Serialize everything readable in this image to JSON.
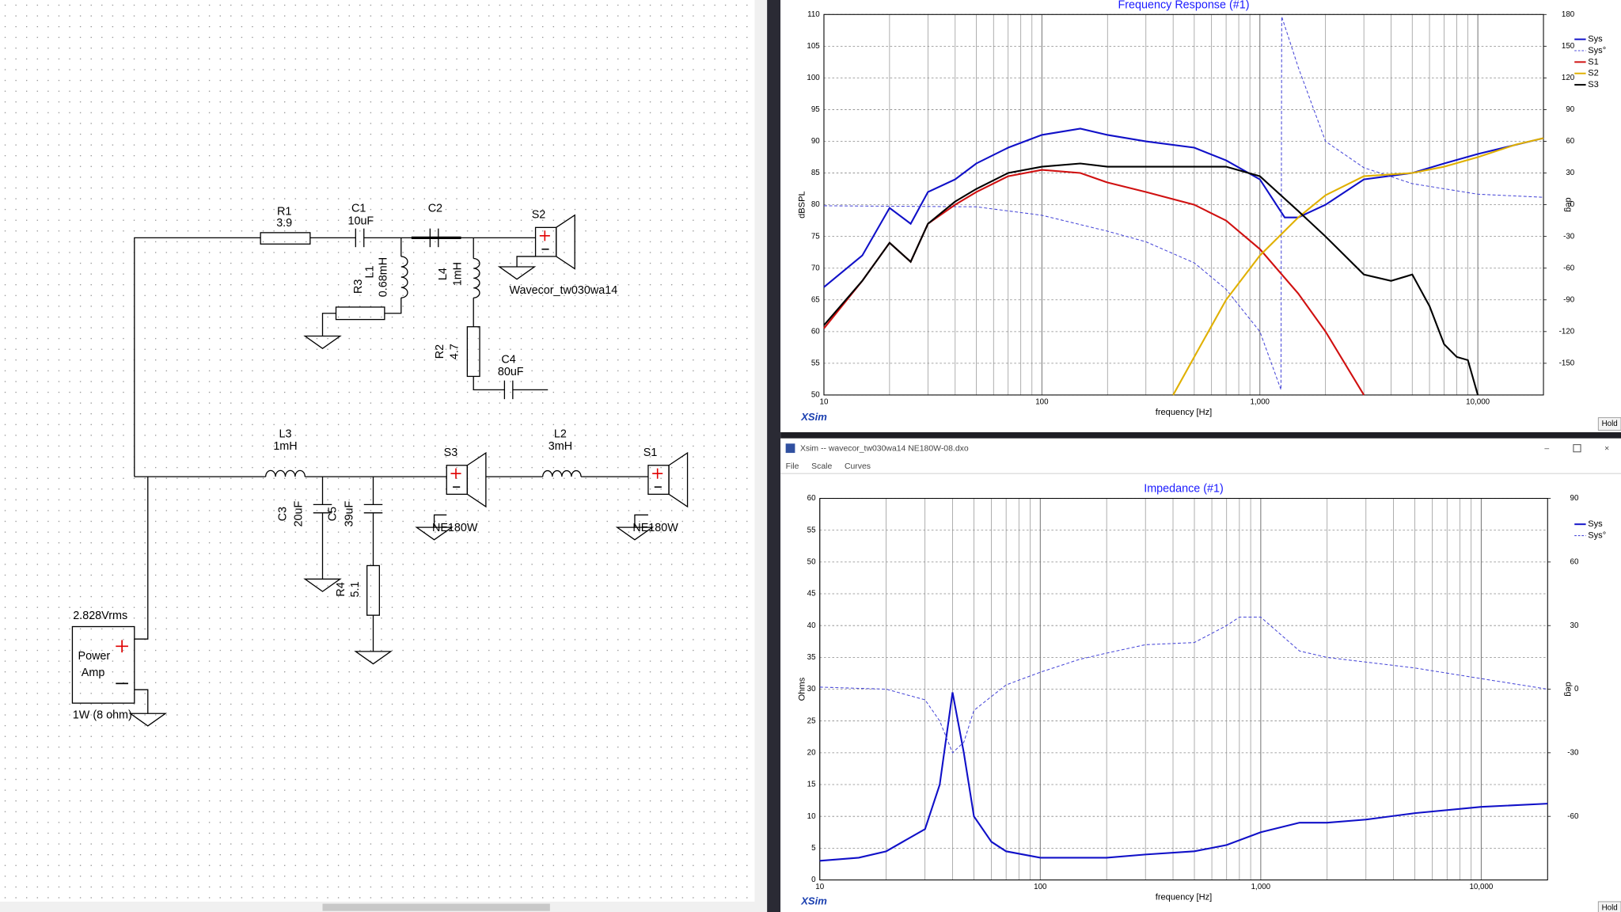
{
  "schematic": {
    "components": [
      {
        "ref": "R1",
        "value": "3.9"
      },
      {
        "ref": "C1",
        "value": "10uF"
      },
      {
        "ref": "C2"
      },
      {
        "ref": "S2",
        "value": "Wavecor_tw030wa14"
      },
      {
        "ref": "R3"
      },
      {
        "ref": "L1",
        "value": "0.68mH"
      },
      {
        "ref": "L4",
        "value": "1mH"
      },
      {
        "ref": "R2",
        "value": "4.7"
      },
      {
        "ref": "C4",
        "value": "80uF"
      },
      {
        "ref": "L3",
        "value": "1mH"
      },
      {
        "ref": "S3",
        "value": "NE180W"
      },
      {
        "ref": "L2",
        "value": "3mH"
      },
      {
        "ref": "S1",
        "value": "NE180W"
      },
      {
        "ref": "C3",
        "value": "20uF"
      },
      {
        "ref": "C5",
        "value": "39uF"
      },
      {
        "ref": "R4",
        "value": "5.1"
      }
    ],
    "amp": {
      "voltage": "2.828Vrms",
      "name_line1": "Power",
      "name_line2": "Amp",
      "rating": "1W (8 ohm)"
    }
  },
  "window": {
    "title": "Xsim -- wavecor_tw030wa14  NE180W-08.dxo",
    "menu": [
      "File",
      "Scale",
      "Curves"
    ]
  },
  "chart_data": [
    {
      "type": "line",
      "title": "Frequency Response (#1)",
      "xlabel": "frequency [Hz]",
      "ylabel": "dBSPL",
      "y2label": "deg",
      "logo": "XSim",
      "hold_button": "Hold",
      "xscale": "log",
      "xlim": [
        10,
        20000
      ],
      "xticks": [
        10,
        100,
        {
          "value": 1000,
          "label": "1,000"
        },
        {
          "value": 10000,
          "label": "10,000"
        }
      ],
      "xgrid_minor": [
        20,
        30,
        40,
        50,
        60,
        70,
        80,
        90,
        200,
        300,
        400,
        500,
        600,
        700,
        800,
        900,
        2000,
        3000,
        4000,
        5000,
        6000,
        7000,
        8000,
        9000
      ],
      "ylim": [
        50,
        110
      ],
      "yticks": [
        50,
        55,
        60,
        65,
        70,
        75,
        80,
        85,
        90,
        95,
        100,
        105,
        110
      ],
      "y2lim": [
        -180,
        180
      ],
      "y2ticks": [
        -150,
        -120,
        -90,
        -60,
        -30,
        0,
        30,
        60,
        90,
        120,
        150,
        180
      ],
      "grid": true,
      "legend": "right",
      "series": [
        {
          "name": "Sys",
          "color": "#1010c8",
          "style": "solid",
          "x": [
            10,
            15,
            20,
            25,
            30,
            40,
            50,
            70,
            100,
            150,
            200,
            300,
            500,
            700,
            1000,
            1300,
            1500,
            2000,
            3000,
            5000,
            7000,
            10000,
            20000
          ],
          "values": [
            67,
            72,
            79.5,
            77,
            82,
            84,
            86.5,
            89,
            91,
            92,
            91,
            90,
            89,
            87,
            84,
            78,
            78,
            80,
            84,
            85,
            86.5,
            88,
            90.5
          ]
        },
        {
          "name": "Sys°",
          "color": "#4848d8",
          "style": "dashed",
          "axis": "y2",
          "x": [
            10,
            50,
            100,
            200,
            300,
            500,
            700,
            1000,
            1250,
            1260,
            1500,
            2000,
            3000,
            5000,
            10000,
            20000
          ],
          "values": [
            -1,
            -2,
            -10,
            -25,
            -35,
            -55,
            -80,
            -120,
            -175,
            178,
            130,
            60,
            35,
            20,
            10,
            7
          ]
        },
        {
          "name": "S1",
          "color": "#d01010",
          "style": "solid",
          "x": [
            10,
            15,
            20,
            25,
            30,
            40,
            50,
            70,
            100,
            150,
            200,
            300,
            500,
            700,
            1000,
            1500,
            2000,
            3000
          ],
          "values": [
            60.5,
            68,
            74,
            71,
            77,
            80,
            82,
            84.5,
            85.5,
            85,
            83.5,
            82,
            80,
            77.5,
            73,
            66,
            60,
            50
          ]
        },
        {
          "name": "S2",
          "color": "#e0b000",
          "style": "solid",
          "x": [
            400,
            500,
            700,
            1000,
            1500,
            2000,
            3000,
            5000,
            7000,
            10000,
            15000,
            20000
          ],
          "values": [
            50,
            56,
            65,
            72,
            78,
            81.5,
            84.5,
            85,
            86,
            87.5,
            89.5,
            90.5
          ]
        },
        {
          "name": "S3",
          "color": "#000000",
          "style": "solid",
          "x": [
            10,
            15,
            20,
            25,
            30,
            40,
            50,
            70,
            100,
            150,
            200,
            300,
            500,
            700,
            1000,
            1500,
            2000,
            3000,
            4000,
            5000,
            6000,
            7000,
            8000,
            9000,
            10000
          ],
          "values": [
            61,
            68,
            74,
            71,
            77,
            80.5,
            82.5,
            85,
            86,
            86.5,
            86,
            86,
            86,
            86,
            84.5,
            79,
            75,
            69,
            68,
            69,
            64,
            58,
            56,
            55.5,
            50
          ]
        }
      ]
    },
    {
      "type": "line",
      "title": "Impedance (#1)",
      "xlabel": "frequency [Hz]",
      "ylabel": "Ohms",
      "y2label": "deg",
      "logo": "XSim",
      "hold_button": "Hold",
      "xscale": "log",
      "xlim": [
        10,
        20000
      ],
      "xticks": [
        10,
        100,
        {
          "value": 1000,
          "label": "1,000"
        },
        {
          "value": 10000,
          "label": "10,000"
        }
      ],
      "xgrid_minor": [
        20,
        30,
        40,
        50,
        60,
        70,
        80,
        90,
        200,
        300,
        400,
        500,
        600,
        700,
        800,
        900,
        2000,
        3000,
        4000,
        5000,
        6000,
        7000,
        8000,
        9000
      ],
      "ylim": [
        0,
        60
      ],
      "yticks": [
        0,
        5,
        10,
        15,
        20,
        25,
        30,
        35,
        40,
        45,
        50,
        55,
        60
      ],
      "y2lim": [
        -90,
        90
      ],
      "y2ticks": [
        -60,
        -30,
        0,
        30,
        60,
        90
      ],
      "grid": true,
      "legend": "right",
      "series": [
        {
          "name": "Sys",
          "color": "#1010c8",
          "style": "solid",
          "x": [
            10,
            15,
            20,
            30,
            35,
            40,
            45,
            50,
            60,
            70,
            100,
            200,
            300,
            500,
            700,
            1000,
            1500,
            2000,
            3000,
            5000,
            10000,
            20000
          ],
          "values": [
            3,
            3.5,
            4.5,
            8,
            15,
            29.5,
            20,
            10,
            6,
            4.5,
            3.5,
            3.5,
            4,
            4.5,
            5.5,
            7.5,
            9,
            9,
            9.5,
            10.5,
            11.5,
            12
          ]
        },
        {
          "name": "Sys°",
          "color": "#4848d8",
          "style": "dashed",
          "axis": "y2",
          "x": [
            10,
            20,
            30,
            35,
            40,
            45,
            50,
            70,
            100,
            150,
            200,
            300,
            500,
            700,
            800,
            1000,
            1500,
            2000,
            5000,
            10000,
            20000
          ],
          "values": [
            1,
            0,
            -5,
            -15,
            -30,
            -25,
            -10,
            2,
            8,
            14,
            17,
            21,
            22,
            30,
            34,
            34,
            18,
            15,
            10,
            5,
            0
          ]
        }
      ]
    }
  ]
}
